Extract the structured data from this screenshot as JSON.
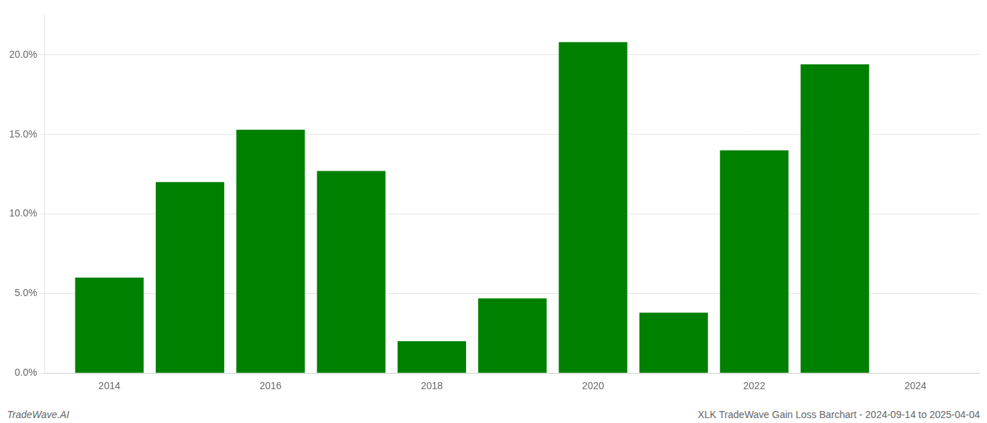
{
  "chart_data": {
    "type": "bar",
    "x": [
      2014,
      2015,
      2016,
      2017,
      2018,
      2019,
      2020,
      2021,
      2022,
      2023
    ],
    "values": [
      0.06,
      0.12,
      0.153,
      0.127,
      0.02,
      0.047,
      0.208,
      0.038,
      0.14,
      0.194
    ],
    "color": "#008000",
    "xlim": [
      2013.2,
      2024.8
    ],
    "xticks": [
      2014,
      2016,
      2018,
      2020,
      2022,
      2024
    ],
    "ylim": [
      0.0,
      0.225
    ],
    "yticks": [
      {
        "value": 0.0,
        "label": "0.0%"
      },
      {
        "value": 0.05,
        "label": "5.0%"
      },
      {
        "value": 0.1,
        "label": "10.0%"
      },
      {
        "value": 0.15,
        "label": "15.0%"
      },
      {
        "value": 0.2,
        "label": "20.0%"
      }
    ],
    "grid": "y",
    "annotations": [
      "TradeWave.AI",
      "XLK TradeWave Gain Loss Barchart - 2024-09-14 to 2025-04-04"
    ]
  }
}
